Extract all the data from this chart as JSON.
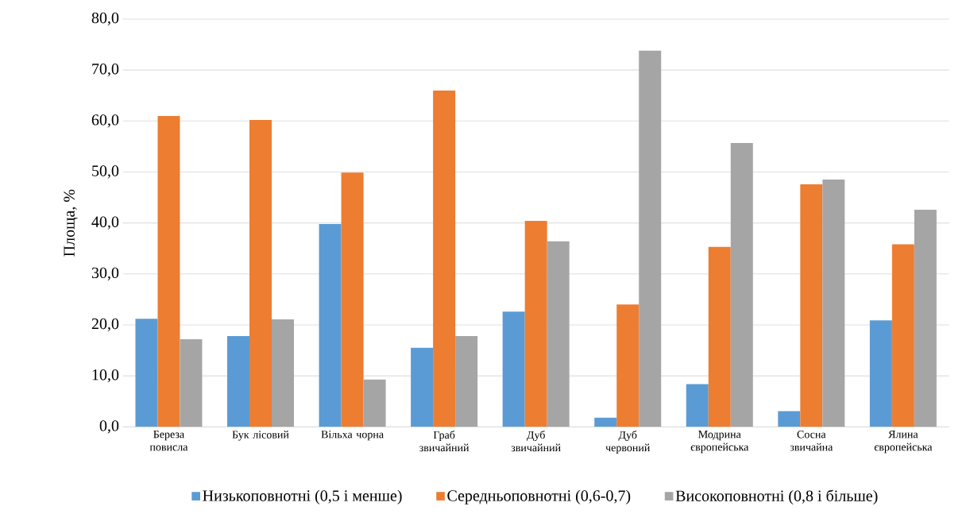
{
  "chart_data": {
    "type": "bar",
    "ylabel": "Площа, %",
    "categories": [
      "Береза повисла",
      "Бук лісовий",
      "Вільха чорна",
      "Граб звичайний",
      "Дуб звичайний",
      "Дуб червоний",
      "Модрина європейська",
      "Сосна звичайна",
      "Ялина європейська"
    ],
    "series": [
      {
        "name": "Низькоповнотні (0,5 і менше)",
        "color": "#5b9bd5",
        "values": [
          21.2,
          17.8,
          39.8,
          15.5,
          22.6,
          1.8,
          8.4,
          3.1,
          20.9
        ]
      },
      {
        "name": "Середньоповнотні (0,6-0,7)",
        "color": "#ed7d31",
        "values": [
          61.0,
          60.2,
          49.9,
          66.0,
          40.4,
          24.0,
          35.3,
          47.6,
          35.8
        ]
      },
      {
        "name": "Високоповнотні (0,8 і більше)",
        "color": "#a5a5a5",
        "values": [
          17.2,
          21.1,
          9.3,
          17.8,
          36.4,
          73.8,
          55.7,
          48.5,
          42.6
        ]
      }
    ],
    "ylim": [
      0,
      80
    ],
    "yticks": [
      {
        "value": 0,
        "label": "0,0"
      },
      {
        "value": 10,
        "label": "10,0"
      },
      {
        "value": 20,
        "label": "20,0"
      },
      {
        "value": 30,
        "label": "30,0"
      },
      {
        "value": 40,
        "label": "40,0"
      },
      {
        "value": 50,
        "label": "50,0"
      },
      {
        "value": 60,
        "label": "60,0"
      },
      {
        "value": 70,
        "label": "70,0"
      },
      {
        "value": 80,
        "label": "80,0"
      }
    ],
    "grid": "y",
    "legend": "bottom"
  }
}
